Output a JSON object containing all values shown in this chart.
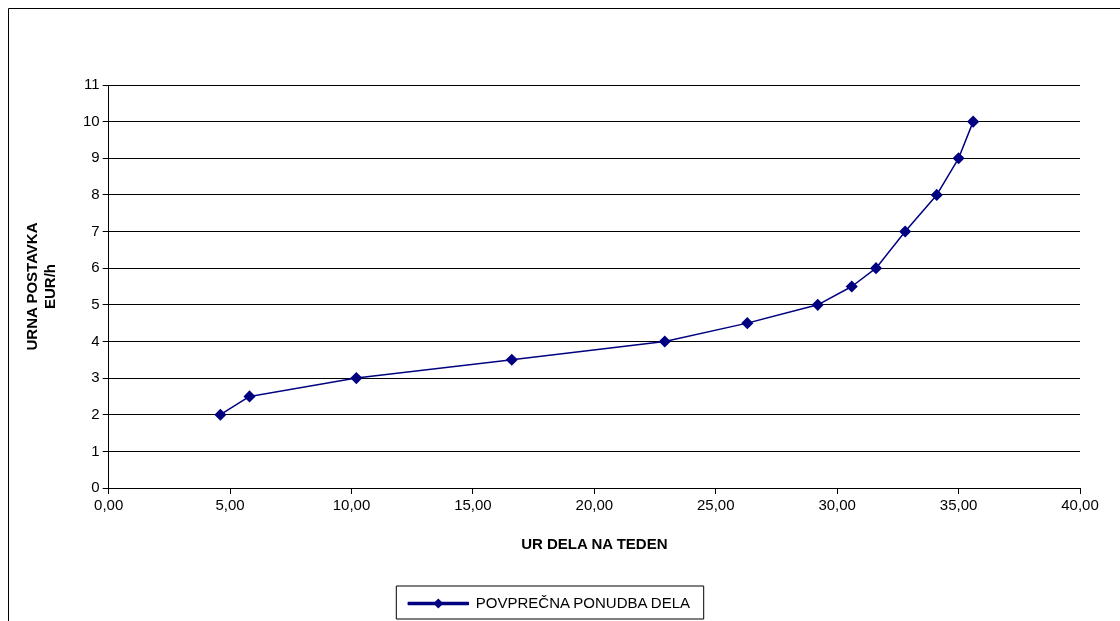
{
  "chart_data": {
    "type": "line",
    "xlabel": "UR DELA NA TEDEN",
    "ylabel": "URNA POSTAVKA\nEUR/h",
    "series": [
      {
        "name": "POVPREČNA PONUDBA DELA",
        "color": "#000080",
        "x": [
          4.6,
          5.8,
          10.2,
          16.6,
          22.9,
          26.3,
          29.2,
          30.6,
          31.6,
          32.8,
          34.1,
          35.0,
          35.6
        ],
        "values": [
          2,
          2.5,
          3,
          3.5,
          4,
          4.5,
          5,
          5.5,
          6,
          7,
          8,
          9,
          10
        ]
      }
    ],
    "xlim": [
      0,
      40
    ],
    "xticks": [
      {
        "value": 0,
        "label": "0,00"
      },
      {
        "value": 5,
        "label": "5,00"
      },
      {
        "value": 10,
        "label": "10,00"
      },
      {
        "value": 15,
        "label": "15,00"
      },
      {
        "value": 20,
        "label": "20,00"
      },
      {
        "value": 25,
        "label": "25,00"
      },
      {
        "value": 30,
        "label": "30,00"
      },
      {
        "value": 35,
        "label": "35,00"
      },
      {
        "value": 40,
        "label": "40,00"
      }
    ],
    "ylim": [
      0,
      11
    ],
    "yticks": [
      0,
      1,
      2,
      3,
      4,
      5,
      6,
      7,
      8,
      9,
      10,
      11
    ],
    "grid": "y",
    "legend": "bottom",
    "marker": "diamond",
    "line_style": "solid"
  }
}
